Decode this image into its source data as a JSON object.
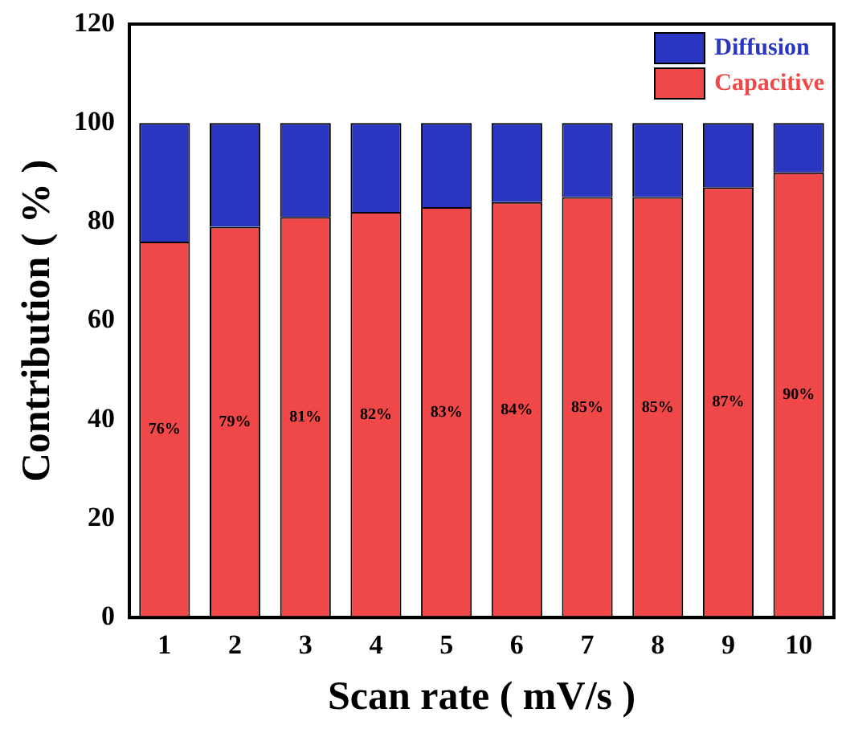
{
  "chart_data": {
    "type": "bar",
    "stacked": true,
    "xlabel": "Scan rate ( mV/s )",
    "ylabel": "Contribution ( % )",
    "categories": [
      "1",
      "2",
      "3",
      "4",
      "5",
      "6",
      "7",
      "8",
      "9",
      "10"
    ],
    "series": [
      {
        "name": "Capacitive",
        "color": "#f04848",
        "values": [
          76,
          79,
          81,
          82,
          83,
          84,
          85,
          85,
          87,
          90
        ],
        "value_labels": [
          "76%",
          "79%",
          "81%",
          "82%",
          "83%",
          "84%",
          "85%",
          "85%",
          "87%",
          "90%"
        ]
      },
      {
        "name": "Diffusion",
        "color": "#2a36c0",
        "values": [
          24,
          21,
          19,
          18,
          17,
          16,
          15,
          15,
          13,
          10
        ]
      }
    ],
    "ylim": [
      0,
      120
    ],
    "yticks": [
      0,
      20,
      40,
      60,
      80,
      100,
      120
    ],
    "grid": false,
    "legend": "top right"
  }
}
